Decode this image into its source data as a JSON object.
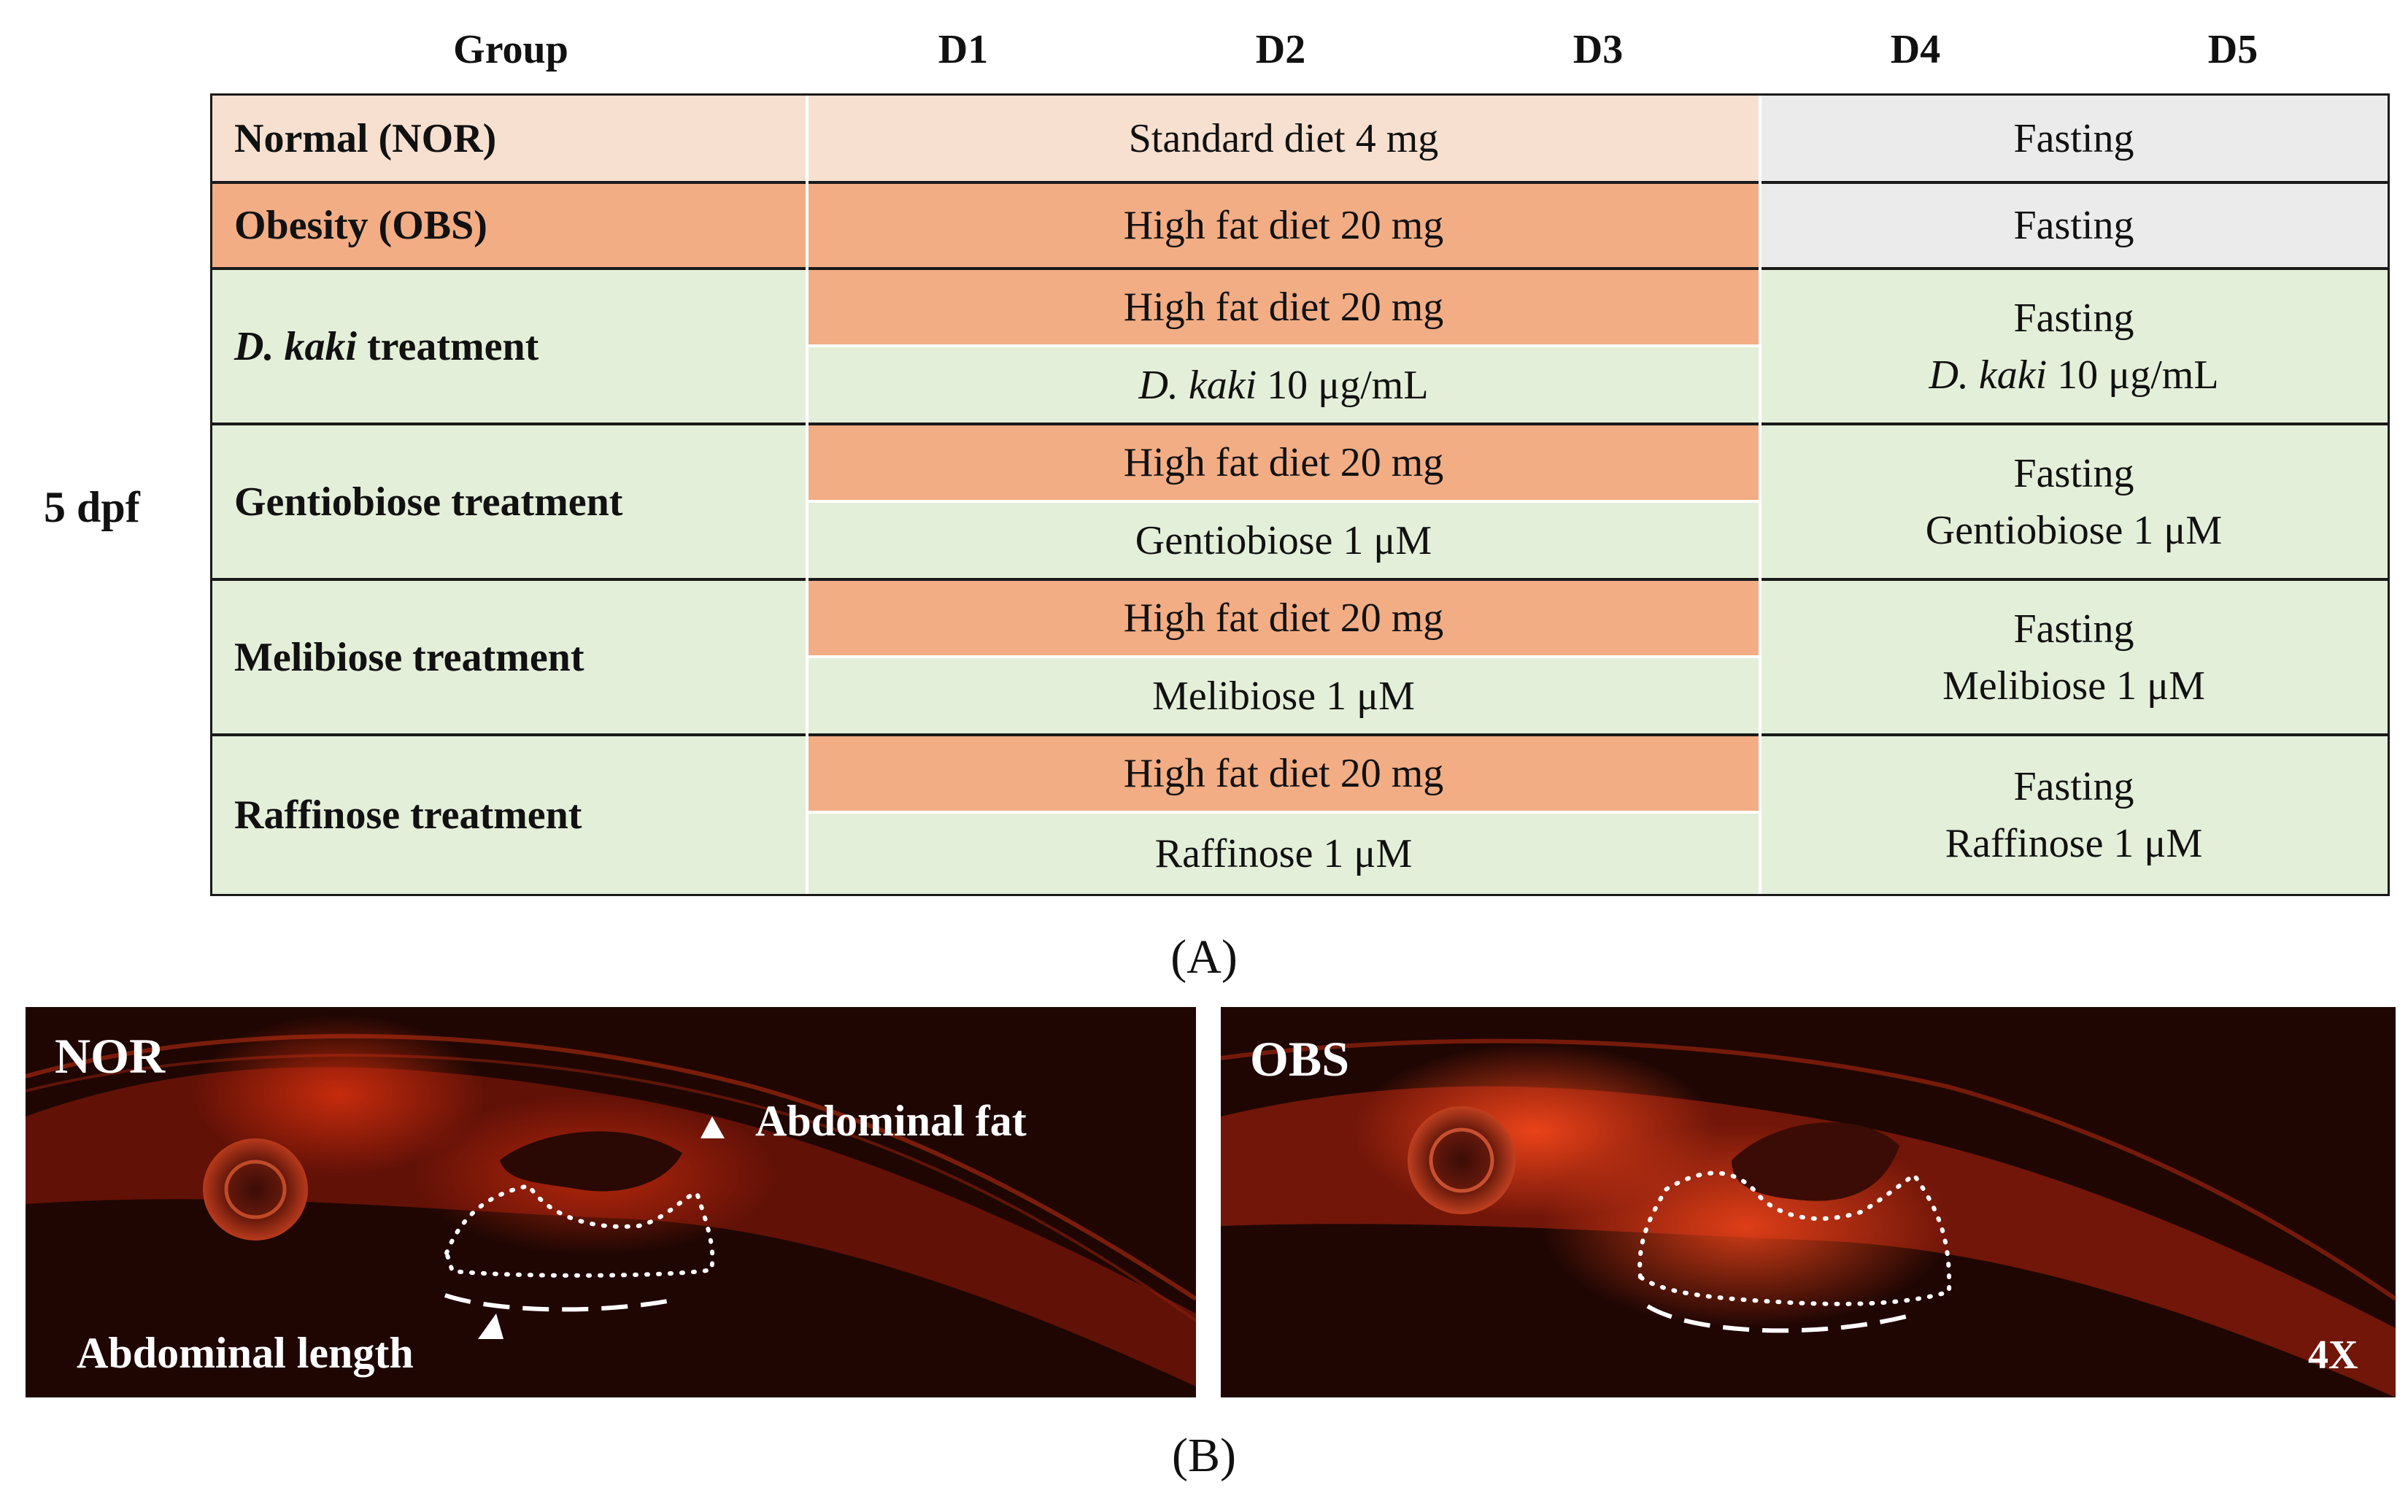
{
  "header": {
    "group": "Group",
    "days": [
      "D1",
      "D2",
      "D3",
      "D4",
      "D5"
    ]
  },
  "side_label": "5 dpf",
  "rows": [
    {
      "group": "Normal (NOR)",
      "diet": "Standard diet 4 mg",
      "late": "Fasting"
    },
    {
      "group": "Obesity (OBS)",
      "diet": "High fat diet 20 mg",
      "late": "Fasting"
    },
    {
      "group_italic": "D. kaki",
      "group_rest": " treatment",
      "diet": "High fat diet 20 mg",
      "treat_italic": "D. kaki",
      "treat_rest": " 10 μg/mL",
      "late_1": "Fasting",
      "late_2_italic": "D. kaki",
      "late_2_rest": " 10 μg/mL"
    },
    {
      "group": "Gentiobiose treatment",
      "diet": "High fat diet 20 mg",
      "treat": "Gentiobiose 1 μM",
      "late_1": "Fasting",
      "late_2": "Gentiobiose 1 μM"
    },
    {
      "group": "Melibiose treatment",
      "diet": "High fat diet 20 mg",
      "treat": "Melibiose 1 μM",
      "late_1": "Fasting",
      "late_2": "Melibiose 1 μM"
    },
    {
      "group": "Raffinose treatment",
      "diet": "High fat diet 20 mg",
      "treat": "Raffinose 1 μM",
      "late_1": "Fasting",
      "late_2": "Raffinose 1 μM"
    }
  ],
  "label_a": "(A)",
  "label_b": "(B)",
  "images": {
    "left_title": "NOR",
    "right_title": "OBS",
    "annot_fat": "Abdominal fat",
    "annot_length": "Abdominal length",
    "magnification": "4X"
  },
  "colors": {
    "peach": "#f7e0d0",
    "orange": "#f2ad85",
    "grey": "#ebebeb",
    "green": "#e3efd9",
    "image_bg": "#200603",
    "fluor": "#e0300f"
  }
}
